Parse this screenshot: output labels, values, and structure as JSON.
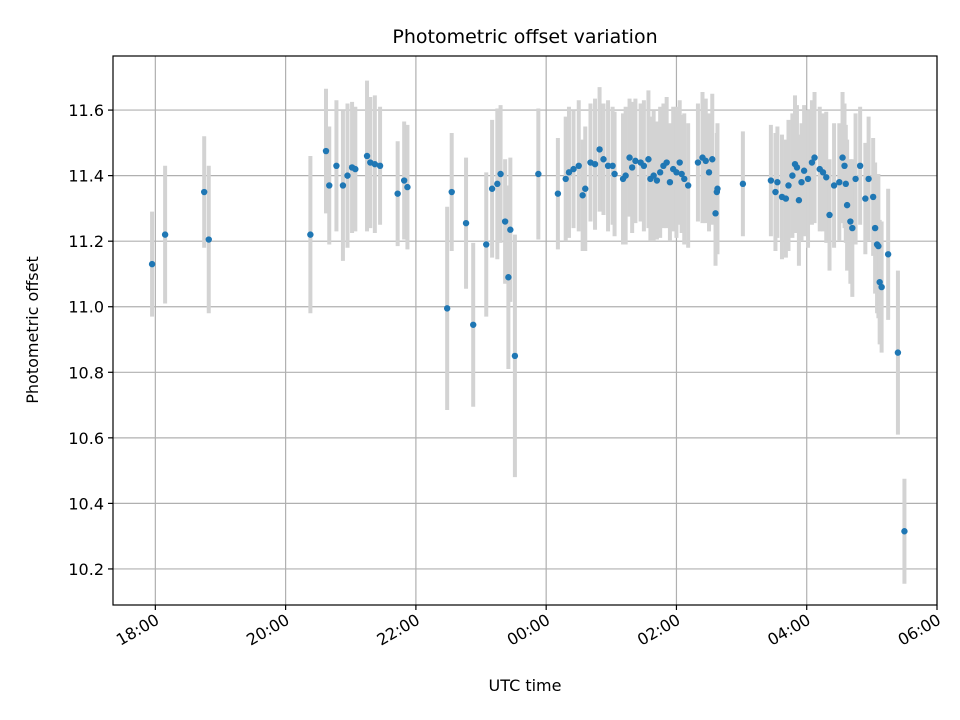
{
  "chart_data": {
    "type": "scatter",
    "title": "Photometric offset variation",
    "xlabel": "UTC time",
    "ylabel": "Photometric offset",
    "xlim_hours": [
      17.35,
      30.0
    ],
    "ylim": [
      10.09,
      11.765
    ],
    "grid": true,
    "x_tick_values": [
      18,
      20,
      22,
      24,
      26,
      28,
      30
    ],
    "x_tick_labels": [
      "18:00",
      "20:00",
      "22:00",
      "00:00",
      "02:00",
      "04:00",
      "06:00"
    ],
    "y_tick_values": [
      10.2,
      10.4,
      10.6,
      10.8,
      11.0,
      11.2,
      11.4,
      11.6
    ],
    "y_tick_labels": [
      "10.2",
      "10.4",
      "10.6",
      "10.8",
      "11.0",
      "11.2",
      "11.4",
      "11.6"
    ],
    "colors": {
      "point": "#1f77b4",
      "errorbar": "#d3d3d3",
      "grid": "#b0b0b0"
    },
    "points": [
      [
        17.95,
        11.13,
        0.16
      ],
      [
        18.15,
        11.22,
        0.21
      ],
      [
        18.75,
        11.35,
        0.17
      ],
      [
        18.82,
        11.205,
        0.225
      ],
      [
        20.38,
        11.22,
        0.24
      ],
      [
        20.62,
        11.475,
        0.19
      ],
      [
        20.67,
        11.37,
        0.18
      ],
      [
        20.78,
        11.43,
        0.2
      ],
      [
        20.88,
        11.37,
        0.23
      ],
      [
        20.95,
        11.4,
        0.22
      ],
      [
        21.02,
        11.425,
        0.2
      ],
      [
        21.07,
        11.42,
        0.19
      ],
      [
        21.25,
        11.46,
        0.23
      ],
      [
        21.3,
        11.44,
        0.2
      ],
      [
        21.37,
        11.435,
        0.21
      ],
      [
        21.45,
        11.43,
        0.18
      ],
      [
        21.72,
        11.345,
        0.16
      ],
      [
        21.82,
        11.385,
        0.18
      ],
      [
        21.87,
        11.365,
        0.19
      ],
      [
        22.48,
        10.995,
        0.31
      ],
      [
        22.55,
        11.35,
        0.18
      ],
      [
        22.77,
        11.255,
        0.2
      ],
      [
        22.88,
        10.945,
        0.25
      ],
      [
        23.08,
        11.19,
        0.22
      ],
      [
        23.17,
        11.36,
        0.21
      ],
      [
        23.25,
        11.375,
        0.23
      ],
      [
        23.3,
        11.405,
        0.21
      ],
      [
        23.37,
        11.26,
        0.19
      ],
      [
        23.42,
        11.09,
        0.28
      ],
      [
        23.45,
        11.235,
        0.22
      ],
      [
        23.52,
        10.85,
        0.37
      ],
      [
        23.88,
        11.405,
        0.2
      ],
      [
        24.18,
        11.345,
        0.17
      ],
      [
        24.3,
        11.39,
        0.19
      ],
      [
        24.35,
        11.41,
        0.2
      ],
      [
        24.42,
        11.42,
        0.18
      ],
      [
        24.5,
        11.43,
        0.2
      ],
      [
        24.56,
        11.34,
        0.17
      ],
      [
        24.6,
        11.36,
        0.19
      ],
      [
        24.68,
        11.44,
        0.18
      ],
      [
        24.75,
        11.435,
        0.2
      ],
      [
        24.82,
        11.48,
        0.19
      ],
      [
        24.88,
        11.45,
        0.17
      ],
      [
        24.95,
        11.43,
        0.2
      ],
      [
        25.02,
        11.43,
        0.18
      ],
      [
        25.05,
        11.405,
        0.19
      ],
      [
        25.18,
        11.39,
        0.2
      ],
      [
        25.22,
        11.4,
        0.21
      ],
      [
        25.28,
        11.455,
        0.18
      ],
      [
        25.32,
        11.425,
        0.2
      ],
      [
        25.37,
        11.445,
        0.19
      ],
      [
        25.45,
        11.44,
        0.18
      ],
      [
        25.5,
        11.43,
        0.2
      ],
      [
        25.57,
        11.45,
        0.21
      ],
      [
        25.6,
        11.39,
        0.19
      ],
      [
        25.65,
        11.4,
        0.2
      ],
      [
        25.7,
        11.385,
        0.18
      ],
      [
        25.75,
        11.41,
        0.2
      ],
      [
        25.8,
        11.43,
        0.19
      ],
      [
        25.85,
        11.44,
        0.2
      ],
      [
        25.9,
        11.38,
        0.18
      ],
      [
        25.95,
        11.42,
        0.19
      ],
      [
        26.0,
        11.41,
        0.2
      ],
      [
        26.05,
        11.44,
        0.19
      ],
      [
        26.08,
        11.405,
        0.18
      ],
      [
        26.12,
        11.39,
        0.2
      ],
      [
        26.18,
        11.37,
        0.19
      ],
      [
        26.33,
        11.44,
        0.18
      ],
      [
        26.4,
        11.455,
        0.2
      ],
      [
        26.45,
        11.445,
        0.19
      ],
      [
        26.5,
        11.41,
        0.18
      ],
      [
        26.55,
        11.45,
        0.2
      ],
      [
        26.6,
        11.285,
        0.16
      ],
      [
        26.62,
        11.35,
        0.18
      ],
      [
        26.63,
        11.36,
        0.2
      ],
      [
        27.02,
        11.375,
        0.16
      ],
      [
        27.45,
        11.385,
        0.17
      ],
      [
        27.52,
        11.35,
        0.18
      ],
      [
        27.55,
        11.38,
        0.17
      ],
      [
        27.62,
        11.335,
        0.19
      ],
      [
        27.68,
        11.33,
        0.18
      ],
      [
        27.72,
        11.37,
        0.2
      ],
      [
        27.78,
        11.4,
        0.19
      ],
      [
        27.82,
        11.435,
        0.21
      ],
      [
        27.85,
        11.425,
        0.19
      ],
      [
        27.88,
        11.325,
        0.2
      ],
      [
        27.92,
        11.38,
        0.18
      ],
      [
        27.96,
        11.415,
        0.2
      ],
      [
        28.02,
        11.39,
        0.21
      ],
      [
        28.08,
        11.44,
        0.19
      ],
      [
        28.12,
        11.455,
        0.2
      ],
      [
        28.2,
        11.42,
        0.19
      ],
      [
        28.25,
        11.41,
        0.18
      ],
      [
        28.3,
        11.395,
        0.2
      ],
      [
        28.35,
        11.28,
        0.17
      ],
      [
        28.42,
        11.37,
        0.19
      ],
      [
        28.5,
        11.38,
        0.18
      ],
      [
        28.55,
        11.455,
        0.2
      ],
      [
        28.58,
        11.43,
        0.19
      ],
      [
        28.6,
        11.375,
        0.18
      ],
      [
        28.62,
        11.31,
        0.2
      ],
      [
        28.67,
        11.26,
        0.19
      ],
      [
        28.7,
        11.24,
        0.21
      ],
      [
        28.75,
        11.39,
        0.2
      ],
      [
        28.82,
        11.43,
        0.18
      ],
      [
        28.9,
        11.33,
        0.17
      ],
      [
        28.95,
        11.39,
        0.19
      ],
      [
        29.02,
        11.335,
        0.18
      ],
      [
        29.05,
        11.24,
        0.2
      ],
      [
        29.08,
        11.19,
        0.21
      ],
      [
        29.1,
        11.185,
        0.22
      ],
      [
        29.12,
        11.075,
        0.19
      ],
      [
        29.15,
        11.06,
        0.2
      ],
      [
        29.25,
        11.16,
        0.2
      ],
      [
        29.4,
        10.86,
        0.25
      ],
      [
        29.5,
        10.315,
        0.16
      ]
    ]
  }
}
